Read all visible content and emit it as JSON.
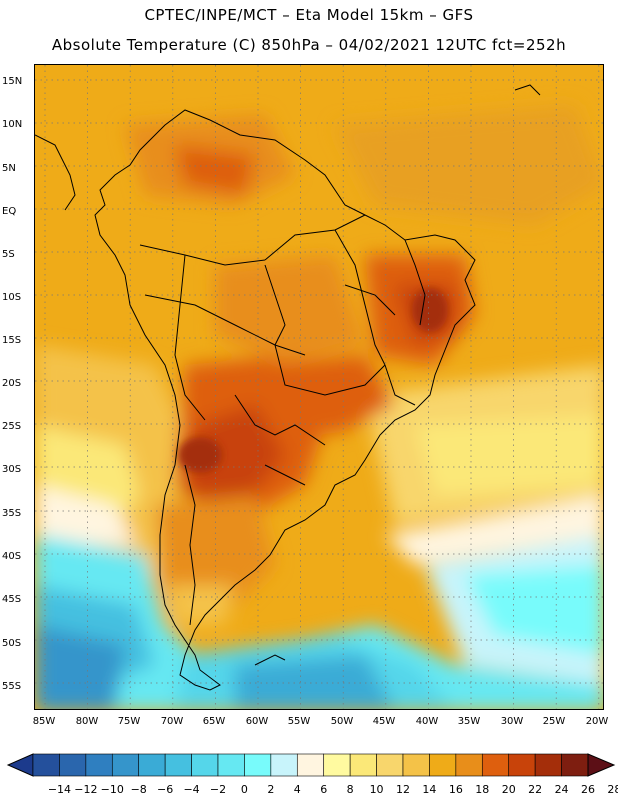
{
  "header": {
    "line1": "CPTEC/INPE/MCT –   Eta Model 15km – GFS",
    "line2": "Absolute Temperature (C) 850hPa – 04/02/2021 12UTC fct=252h"
  },
  "map": {
    "lat_ticks": [
      "15N",
      "10N",
      "5N",
      "EQ",
      "5S",
      "10S",
      "15S",
      "20S",
      "25S",
      "30S",
      "35S",
      "40S",
      "45S",
      "50S",
      "55S"
    ],
    "lon_ticks": [
      "85W",
      "80W",
      "75W",
      "70W",
      "65W",
      "60W",
      "55W",
      "50W",
      "45W",
      "40W",
      "35W",
      "30W",
      "25W",
      "20W"
    ]
  },
  "legend": {
    "labels": [
      "-14",
      "-12",
      "-10",
      "-8",
      "-6",
      "-4",
      "-2",
      "0",
      "2",
      "4",
      "6",
      "8",
      "10",
      "12",
      "14",
      "16",
      "18",
      "20",
      "22",
      "24",
      "26",
      "28"
    ],
    "colors": [
      "#1c3a8c",
      "#24509c",
      "#2a66ad",
      "#2f7fc0",
      "#3595cb",
      "#3aabd6",
      "#45c0e0",
      "#55d6ea",
      "#66e8f2",
      "#78fbfb",
      "#c8f4fb",
      "#fff5e0",
      "#fffaa0",
      "#fbe878",
      "#f8d66c",
      "#f4c248",
      "#efab18",
      "#e88e1a",
      "#de5f0e",
      "#c8430a",
      "#a42e0a",
      "#7e1e10",
      "#5c0f16"
    ]
  }
}
